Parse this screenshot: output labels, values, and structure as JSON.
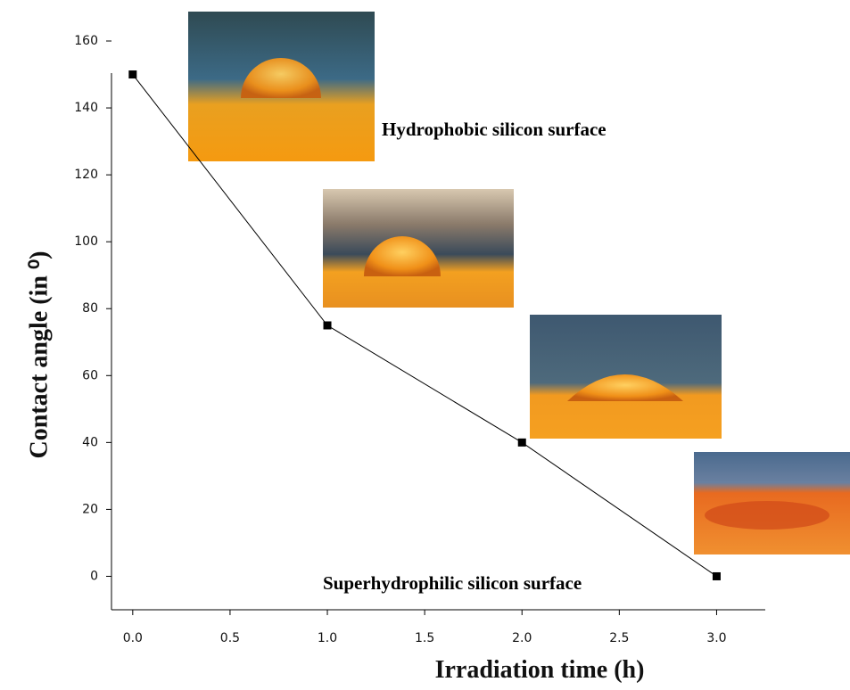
{
  "chart_data": {
    "type": "line",
    "xlabel": "Irradiation time (h)",
    "ylabel": "Contact angle (in ⁰)",
    "annotations": [
      "Hydrophobic silicon surface",
      "Superhydrophilic silicon surface"
    ],
    "x": [
      0,
      1,
      2,
      3
    ],
    "values": [
      150,
      75,
      40,
      0
    ],
    "color": "#000000",
    "xlim": [
      -0.1,
      3.25
    ],
    "ylim": [
      -10,
      160
    ],
    "xticks": [
      {
        "value": 0,
        "label": "0.0"
      },
      0.5,
      {
        "value": 1,
        "label": "1.0"
      },
      1.5,
      {
        "value": 2,
        "label": "2.0"
      },
      2.5,
      {
        "value": 3,
        "label": "3.0"
      }
    ],
    "yticks": [
      0,
      20,
      40,
      60,
      80,
      100,
      120,
      140,
      160
    ],
    "grid": false
  }
}
